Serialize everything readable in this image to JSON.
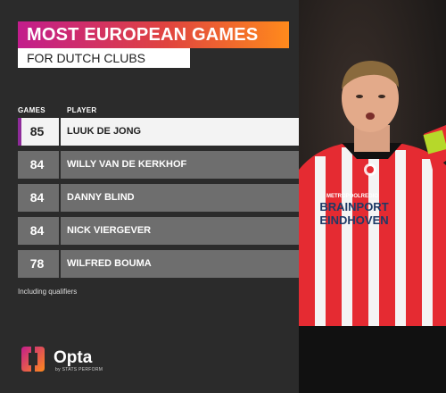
{
  "header": {
    "title": "MOST EUROPEAN GAMES",
    "subtitle": "FOR DUTCH CLUBS"
  },
  "table": {
    "col_games": "GAMES",
    "col_player": "PLAYER",
    "rows": [
      {
        "games": "85",
        "player": "LUUK DE JONG"
      },
      {
        "games": "84",
        "player": "WILLY VAN DE KERKHOF"
      },
      {
        "games": "84",
        "player": "DANNY BLIND"
      },
      {
        "games": "84",
        "player": "NICK VIERGEVER"
      },
      {
        "games": "78",
        "player": "WILFRED BOUMA"
      }
    ]
  },
  "footnote": "Including qualifiers",
  "brand": {
    "name": "Opta",
    "tagline": "by STATS PERFORM"
  },
  "photo": {
    "sponsor_line1": "BRAINPORT",
    "sponsor_line2": "EINDHOVEN",
    "sponsor_small": "METROPOOLREGIO"
  },
  "colors": {
    "gradient_start": "#c21d8c",
    "gradient_end": "#ff8a1c",
    "highlight": "#8e2b9a"
  }
}
